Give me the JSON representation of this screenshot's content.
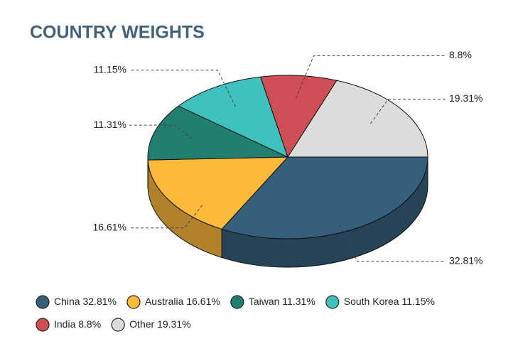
{
  "chart_data": {
    "type": "pie",
    "title": "COUNTRY WEIGHTS",
    "categories": [
      "China",
      "Australia",
      "Taiwan",
      "South Korea",
      "India",
      "Other"
    ],
    "values": [
      32.81,
      16.61,
      11.31,
      11.15,
      8.8,
      19.31
    ],
    "value_labels": [
      "32.81%",
      "16.61%",
      "11.31%",
      "11.15%",
      "8.8%",
      "19.31%"
    ],
    "colors": [
      "#365f7c",
      "#fdb93a",
      "#227e6f",
      "#3fc1bd",
      "#cf4e55",
      "#dcdcdc"
    ]
  }
}
